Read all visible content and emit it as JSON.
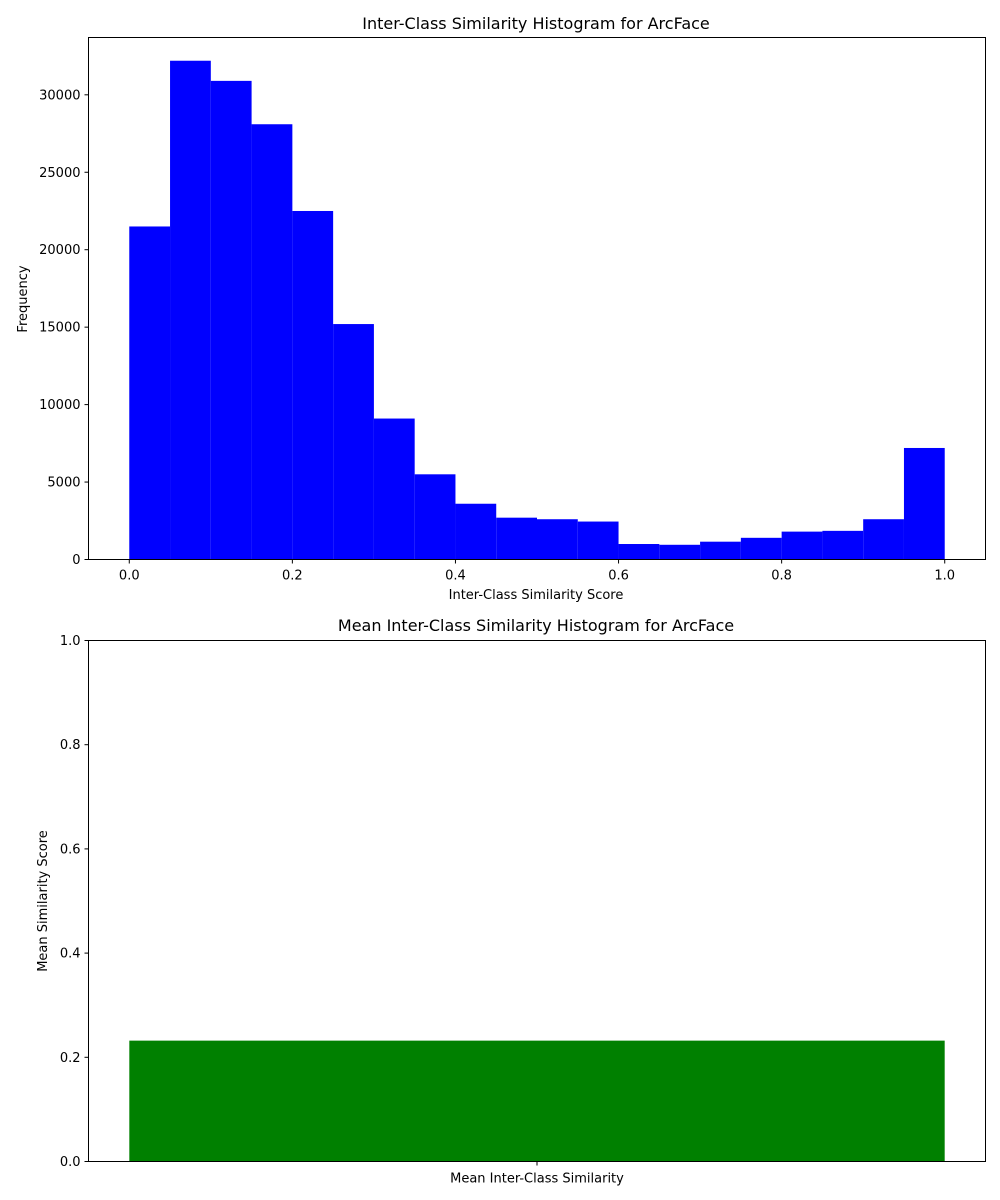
{
  "chart_data": [
    {
      "type": "bar",
      "title": "Inter-Class Similarity Histogram for ArcFace",
      "xlabel": "Inter-Class Similarity Score",
      "ylabel": "Frequency",
      "color": "#0000ff",
      "bin_edges": [
        0.0,
        0.05,
        0.1,
        0.15,
        0.2,
        0.25,
        0.3,
        0.35,
        0.4,
        0.45,
        0.5,
        0.55,
        0.6,
        0.65,
        0.7,
        0.75,
        0.8,
        0.85,
        0.9,
        0.95,
        1.0
      ],
      "values": [
        21500,
        32200,
        30900,
        28100,
        22500,
        15200,
        9100,
        5500,
        3600,
        2700,
        2600,
        2450,
        1000,
        950,
        1150,
        1400,
        1800,
        1850,
        2600,
        7200
      ],
      "xlim": [
        -0.05,
        1.05
      ],
      "ylim": [
        0,
        33700
      ],
      "xticks": [
        0.0,
        0.2,
        0.4,
        0.6,
        0.8,
        1.0
      ],
      "xtick_labels": [
        "0.0",
        "0.2",
        "0.4",
        "0.6",
        "0.8",
        "1.0"
      ],
      "yticks": [
        0,
        5000,
        10000,
        15000,
        20000,
        25000,
        30000
      ],
      "ytick_labels": [
        "0",
        "5000",
        "10000",
        "15000",
        "20000",
        "25000",
        "30000"
      ],
      "grid": false
    },
    {
      "type": "bar",
      "title": "Mean Inter-Class Similarity Histogram for ArcFace",
      "xlabel": "",
      "ylabel": "Mean Similarity Score",
      "color": "#008000",
      "categories": [
        "Mean Inter-Class Similarity"
      ],
      "values": [
        0.232
      ],
      "ylim": [
        0,
        1
      ],
      "yticks": [
        0.0,
        0.2,
        0.4,
        0.6,
        0.8,
        1.0
      ],
      "ytick_labels": [
        "0.0",
        "0.2",
        "0.4",
        "0.6",
        "0.8",
        "1.0"
      ],
      "grid": false
    }
  ]
}
